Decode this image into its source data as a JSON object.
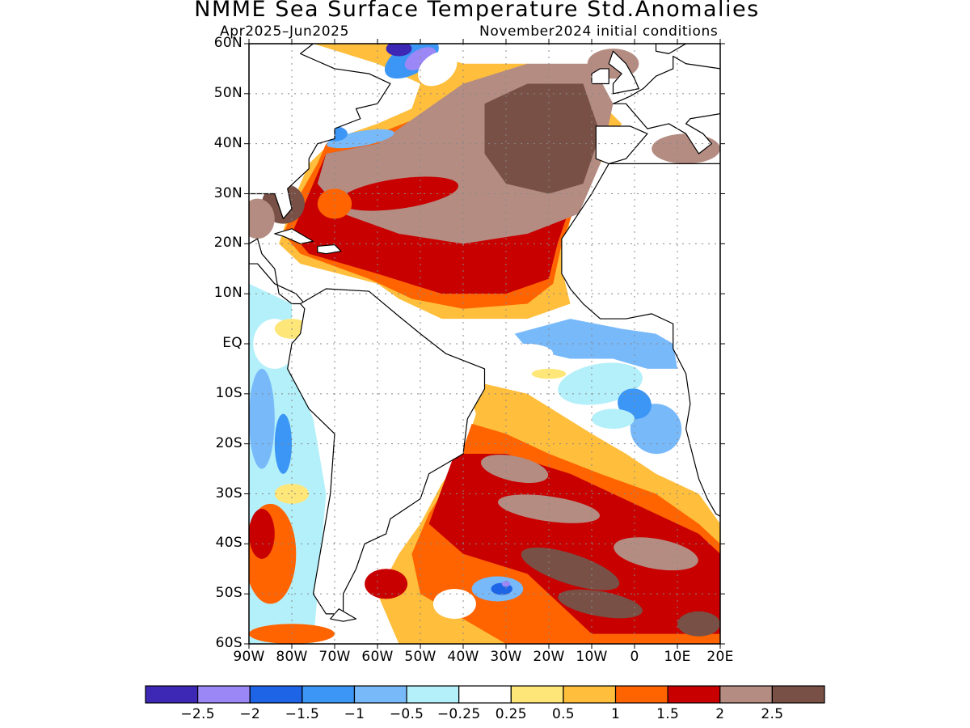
{
  "title": "NMME Sea Surface Temperature Std.Anomalies",
  "period": "Apr2025–Jun2025",
  "init": "November2024 initial conditions",
  "map": {
    "projection": "equirectangular",
    "lon_range": [
      -90,
      20
    ],
    "lat_range": [
      -60,
      60
    ],
    "y_ticks": [
      "60N",
      "50N",
      "40N",
      "30N",
      "20N",
      "10N",
      "EQ",
      "10S",
      "20S",
      "30S",
      "40S",
      "50S",
      "60S"
    ],
    "x_ticks": [
      "90W",
      "80W",
      "70W",
      "60W",
      "50W",
      "40W",
      "30W",
      "20W",
      "10W",
      "0",
      "10E",
      "20E"
    ],
    "land_color": "#ffffff",
    "gridlines": "dotted"
  },
  "colorbar": {
    "colors": [
      "#3c28b4",
      "#9b87f5",
      "#1e64e6",
      "#3c96f5",
      "#78b9fa",
      "#b4f0fa",
      "#ffffff",
      "#ffe678",
      "#ffbe3c",
      "#ff6400",
      "#c80000",
      "#b48c82",
      "#785046"
    ],
    "labels": [
      "−2.5",
      "−2",
      "−1.5",
      "−1",
      "−0.5",
      "−0.25",
      "0.25",
      "0.5",
      "1",
      "1.5",
      "2",
      "2.5"
    ]
  }
}
